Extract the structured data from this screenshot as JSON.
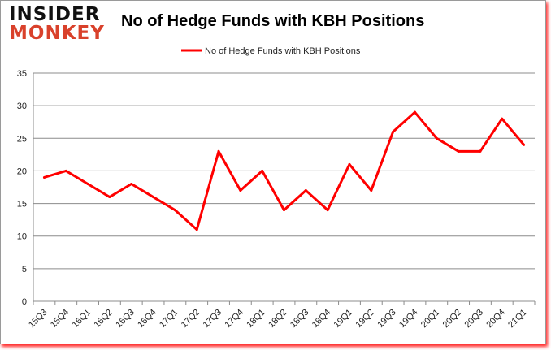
{
  "logo": {
    "line1": "INSIDER",
    "line2": "MONKEY"
  },
  "chart_data": {
    "type": "line",
    "title": "No of Hedge Funds with KBH Positions",
    "xlabel": "",
    "ylabel": "",
    "categories": [
      "15Q3",
      "15Q4",
      "16Q1",
      "16Q2",
      "16Q3",
      "16Q4",
      "17Q1",
      "17Q2",
      "17Q3",
      "17Q4",
      "18Q1",
      "18Q2",
      "18Q3",
      "18Q4",
      "19Q1",
      "19Q2",
      "19Q3",
      "19Q4",
      "20Q1",
      "20Q2",
      "20Q3",
      "20Q4",
      "21Q1"
    ],
    "series": [
      {
        "name": "No of Hedge Funds with KBH Positions",
        "color": "#ff0000",
        "values": [
          19,
          20,
          18,
          16,
          18,
          16,
          14,
          11,
          23,
          17,
          20,
          14,
          17,
          14,
          21,
          17,
          26,
          29,
          25,
          23,
          23,
          28,
          24
        ]
      }
    ],
    "ylim": [
      0,
      35
    ],
    "yticks": [
      0,
      5,
      10,
      15,
      20,
      25,
      30,
      35
    ],
    "grid": true,
    "legend": "top-center"
  }
}
